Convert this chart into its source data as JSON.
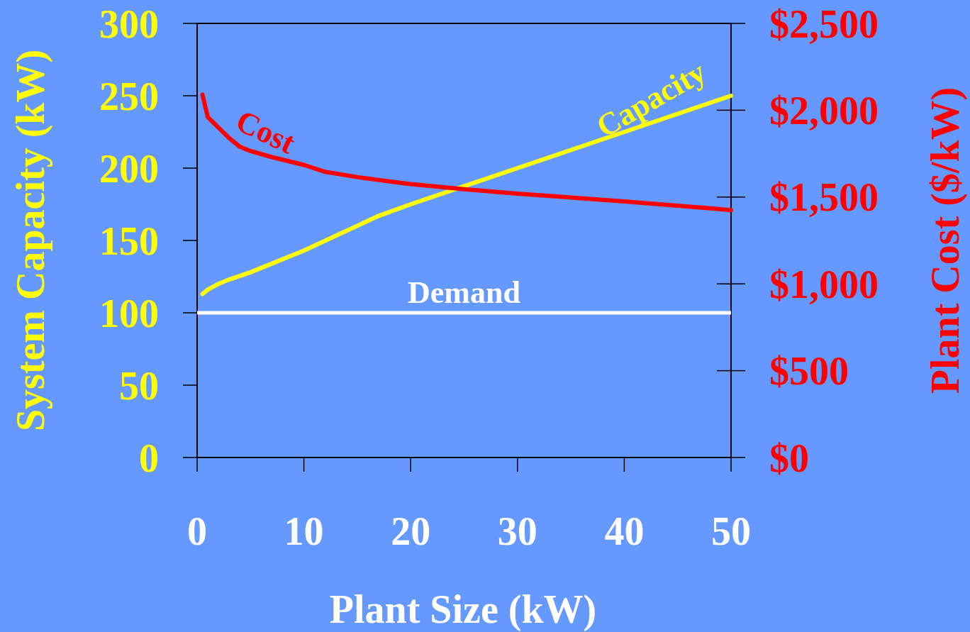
{
  "chart_data": {
    "type": "line",
    "xlabel": "Plant Size (kW)",
    "ylabel": "System Capacity (kW)",
    "y2label": "Plant Cost ($/kW)",
    "xlim": [
      0,
      50
    ],
    "xticks": [
      0,
      10,
      20,
      30,
      40,
      50
    ],
    "ylim": [
      0,
      300
    ],
    "yticks": [
      0,
      50,
      100,
      150,
      200,
      250,
      300
    ],
    "y2lim": [
      0,
      2500
    ],
    "y2ticks": [
      {
        "value": 0,
        "label": "$0"
      },
      {
        "value": 500,
        "label": "$500"
      },
      {
        "value": 1000,
        "label": "$1,000"
      },
      {
        "value": 1500,
        "label": "$1,500"
      },
      {
        "value": 2000,
        "label": "$2,000"
      },
      {
        "value": 2500,
        "label": "$2,500"
      }
    ],
    "grid": false,
    "marker": "none",
    "line_style": "solid",
    "series": [
      {
        "name": "Capacity",
        "color": "#ffff00",
        "x": [
          0.5,
          1,
          2,
          3,
          5,
          10,
          17,
          20,
          30,
          40,
          50
        ],
        "values": [
          113,
          116,
          120,
          123,
          128,
          143,
          167,
          175,
          200,
          225,
          250
        ]
      },
      {
        "name": "Cost",
        "color": "#ff0000",
        "axis": "y2",
        "x": [
          0.5,
          1,
          2,
          3,
          4,
          5,
          7,
          10,
          12,
          15,
          18,
          20,
          25,
          30,
          40,
          50
        ],
        "values": [
          2090,
          1960,
          1900,
          1840,
          1790,
          1765,
          1730,
          1685,
          1645,
          1615,
          1590,
          1575,
          1545,
          1520,
          1475,
          1425
        ]
      }
    ],
    "ref_lines": [
      {
        "axis": "y",
        "value": 100,
        "label": "Demand",
        "color": "#ffffff"
      }
    ]
  }
}
